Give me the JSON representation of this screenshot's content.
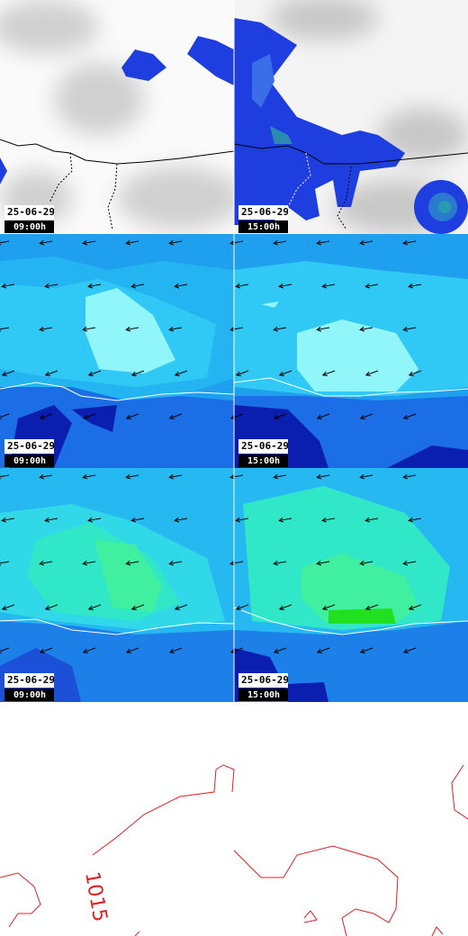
{
  "panels": [
    {
      "date": "25-06-29",
      "time": "09:00h"
    },
    {
      "date": "25-06-29",
      "time": "15:00h"
    },
    {
      "date": "25-06-29",
      "time": "09:00h"
    },
    {
      "date": "25-06-29",
      "time": "15:00h"
    },
    {
      "date": "25-06-29",
      "time": "09:00h"
    },
    {
      "date": "25-06-29",
      "time": "15:00h"
    }
  ],
  "isobar_label": "1015"
}
